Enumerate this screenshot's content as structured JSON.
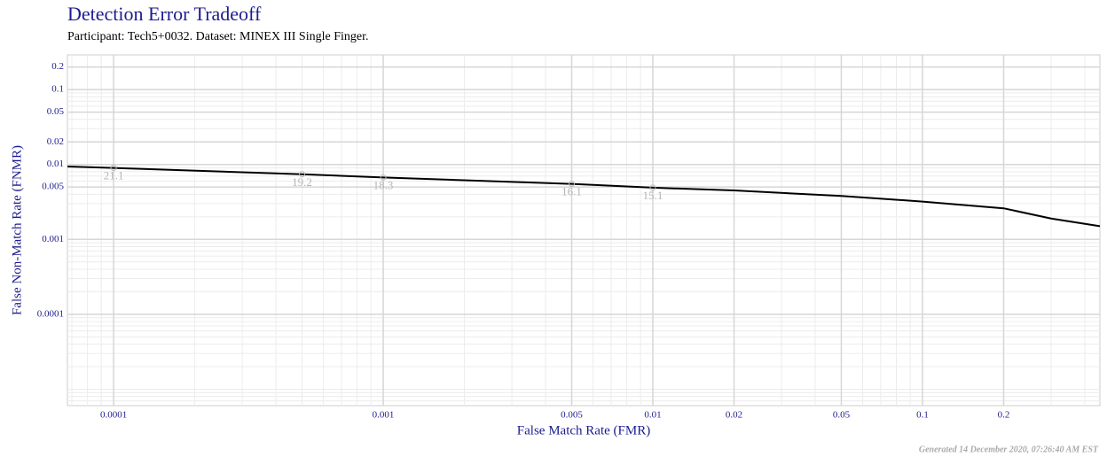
{
  "chart_data": {
    "type": "line",
    "title": "Detection Error Tradeoff",
    "subtitle": "Participant: Tech5+0032. Dataset: MINEX III Single Finger.",
    "x_label": "False Match Rate (FMR)",
    "y_label": "False Non-Match Rate (FNMR)",
    "footer": "Generated 14 December 2020, 07:26:40 AM EST",
    "log_x": true,
    "log_y": true,
    "grid": true,
    "minor_grid": true,
    "color": "#000000",
    "x": [
      6.74e-05,
      0.0001,
      0.0005,
      0.001,
      0.005,
      0.01,
      0.02,
      0.05,
      0.1,
      0.2,
      0.3,
      0.455
    ],
    "values": [
      0.0094,
      0.009,
      0.0074,
      0.0067,
      0.0055,
      0.0049,
      0.0045,
      0.0038,
      0.0032,
      0.0026,
      0.0019,
      0.0015
    ],
    "annotations": [
      {
        "text": "21.1",
        "x": 0.0001,
        "y": 0.009
      },
      {
        "text": "19.2",
        "x": 0.0005,
        "y": 0.0074
      },
      {
        "text": "18.3",
        "x": 0.001,
        "y": 0.0067
      },
      {
        "text": "16.1",
        "x": 0.005,
        "y": 0.0055
      },
      {
        "text": "15.1",
        "x": 0.01,
        "y": 0.0049
      }
    ],
    "xlim": [
      6.74e-05,
      0.455
    ],
    "ylim": [
      6.04e-06,
      0.29
    ],
    "xticks": [
      0.0001,
      0.001,
      0.005,
      0.01,
      0.02,
      0.05,
      0.1,
      0.2
    ],
    "yticks": [
      0.0001,
      0.001,
      0.005,
      0.01,
      0.02,
      0.05,
      0.1,
      0.2
    ]
  }
}
